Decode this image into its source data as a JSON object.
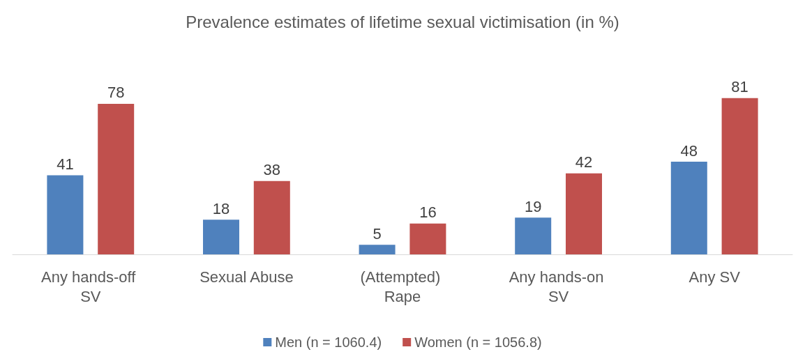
{
  "chart_data": {
    "type": "bar",
    "title": "Prevalence estimates of lifetime sexual victimisation (in %)",
    "categories": [
      "Any hands-off SV",
      "Sexual Abuse",
      "(Attempted) Rape",
      "Any hands-on SV",
      "Any SV"
    ],
    "series": [
      {
        "name": "Men (n = 1060.4)",
        "color": "#4f81bd",
        "values": [
          41,
          18,
          5,
          19,
          48
        ]
      },
      {
        "name": "Women (n = 1056.8)",
        "color": "#c0504d",
        "values": [
          78,
          38,
          16,
          42,
          81
        ]
      }
    ],
    "data_labels": true,
    "legend": "bottom"
  }
}
